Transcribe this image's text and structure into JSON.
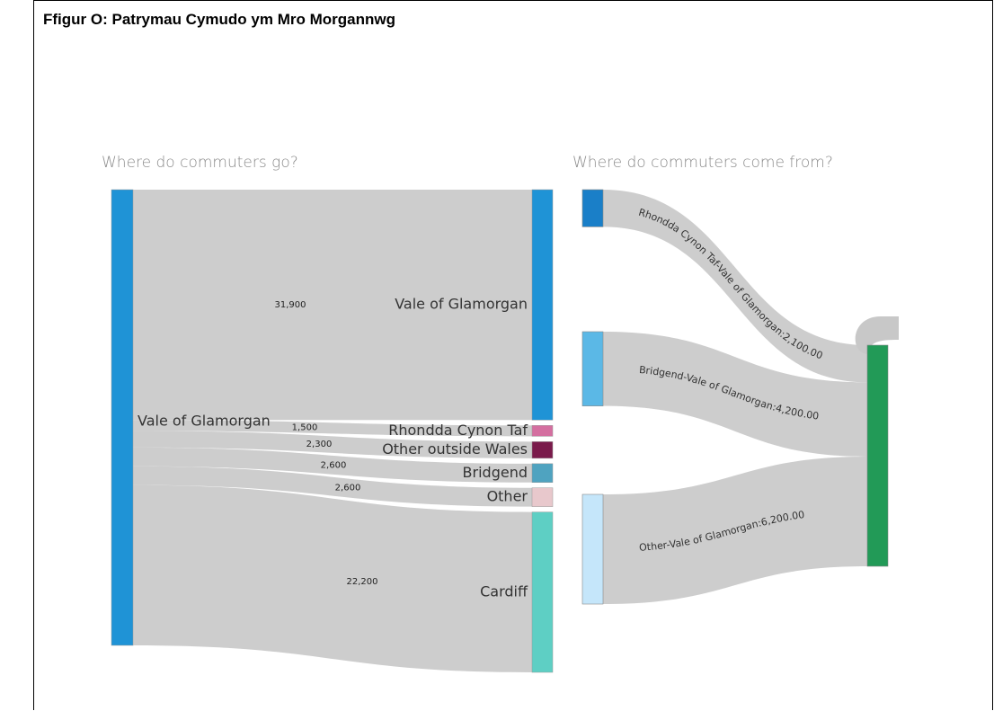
{
  "title": "Ffigur O: Patrymau Cymudo ym Mro Morgannwg",
  "chart_data": [
    {
      "type": "sankey",
      "title": "Where do commuters go?",
      "source": "Vale of Glamorgan",
      "source_color": "#1f93d6",
      "categories": [
        "Vale of Glamorgan",
        "Rhondda Cynon Taf",
        "Other outside Wales",
        "Bridgend",
        "Other",
        "Cardiff"
      ],
      "values": [
        31900,
        1500,
        2300,
        2600,
        2600,
        22200
      ],
      "value_labels": [
        "31,900",
        "1,500",
        "2,300",
        "2,600",
        "2,600",
        "22,200"
      ],
      "colors": [
        "#1f93d6",
        "#d46fa0",
        "#7a1a4b",
        "#4fa3c0",
        "#e8c8cc",
        "#5ecfc4"
      ]
    },
    {
      "type": "sankey_in",
      "title": "Where do commuters come from?",
      "target_color": "#229a57",
      "labels": [
        "Rhondda Cynon Taf-Vale of Glamorgan:2,100.00",
        "Bridgend-Vale of Glamorgan:4,200.00",
        "Other-Vale of Glamorgan:6,200.00"
      ],
      "values": [
        2100,
        4200,
        6200
      ],
      "colors": [
        "#1a7fc8",
        "#5bb8e6",
        "#c5e6fa"
      ]
    }
  ]
}
